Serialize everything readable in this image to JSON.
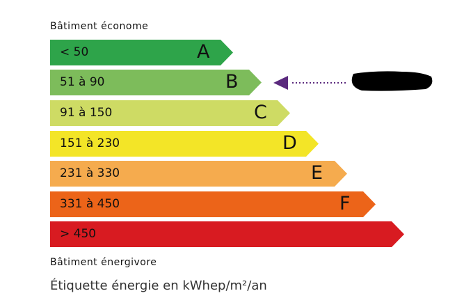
{
  "top_label": "Bâtiment économe",
  "bottom_label": "Bâtiment énergivore",
  "footer": "Étiquette énergie en kWhep/m²/an",
  "classes": [
    {
      "range": "< 50",
      "letter": "A",
      "color": "#2ea44a"
    },
    {
      "range": "51 à 90",
      "letter": "B",
      "color": "#7dbc5b"
    },
    {
      "range": "91 à 150",
      "letter": "C",
      "color": "#cedb64"
    },
    {
      "range": "151 à 230",
      "letter": "D",
      "color": "#f3e527"
    },
    {
      "range": "231 à 330",
      "letter": "E",
      "color": "#f5ab4e"
    },
    {
      "range": "331 à 450",
      "letter": "F",
      "color": "#ec6419"
    },
    {
      "range": "> 450",
      "letter": "",
      "color": "#d81b21"
    }
  ],
  "indicator": {
    "class": "B",
    "color": "#5b2a7e",
    "label_redacted": true
  }
}
